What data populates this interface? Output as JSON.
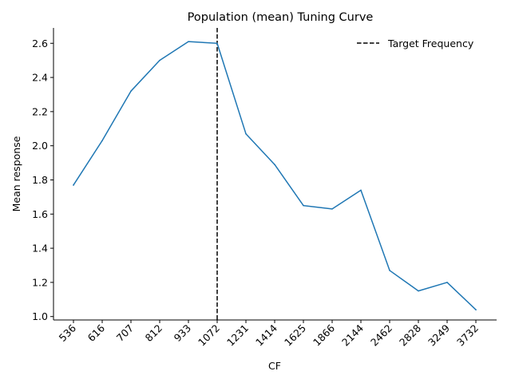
{
  "chart_data": {
    "type": "line",
    "title": "Population (mean) Tuning Curve",
    "xlabel": "CF",
    "ylabel": "Mean response",
    "categories": [
      "536",
      "616",
      "707",
      "812",
      "933",
      "1072",
      "1231",
      "1414",
      "1625",
      "1866",
      "2144",
      "2462",
      "2828",
      "3249",
      "3732"
    ],
    "series": [
      {
        "values": [
          1.77,
          2.03,
          2.32,
          2.5,
          2.61,
          2.6,
          2.07,
          1.89,
          1.65,
          1.63,
          1.74,
          1.27,
          1.15,
          1.2,
          1.04
        ],
        "color": "#1f77b4"
      }
    ],
    "yticks": [
      1.0,
      1.2,
      1.4,
      1.6,
      1.8,
      2.0,
      2.2,
      2.4,
      2.6
    ],
    "ytick_labels": [
      "1.0",
      "1.2",
      "1.4",
      "1.6",
      "1.8",
      "2.0",
      "2.2",
      "2.4",
      "2.6"
    ],
    "ylim": [
      0.98,
      2.69
    ],
    "target_line": {
      "category": "1072",
      "label": "Target Frequency",
      "color": "#000000",
      "style": "dashed"
    },
    "legend_position": "top-right",
    "grid": false
  }
}
